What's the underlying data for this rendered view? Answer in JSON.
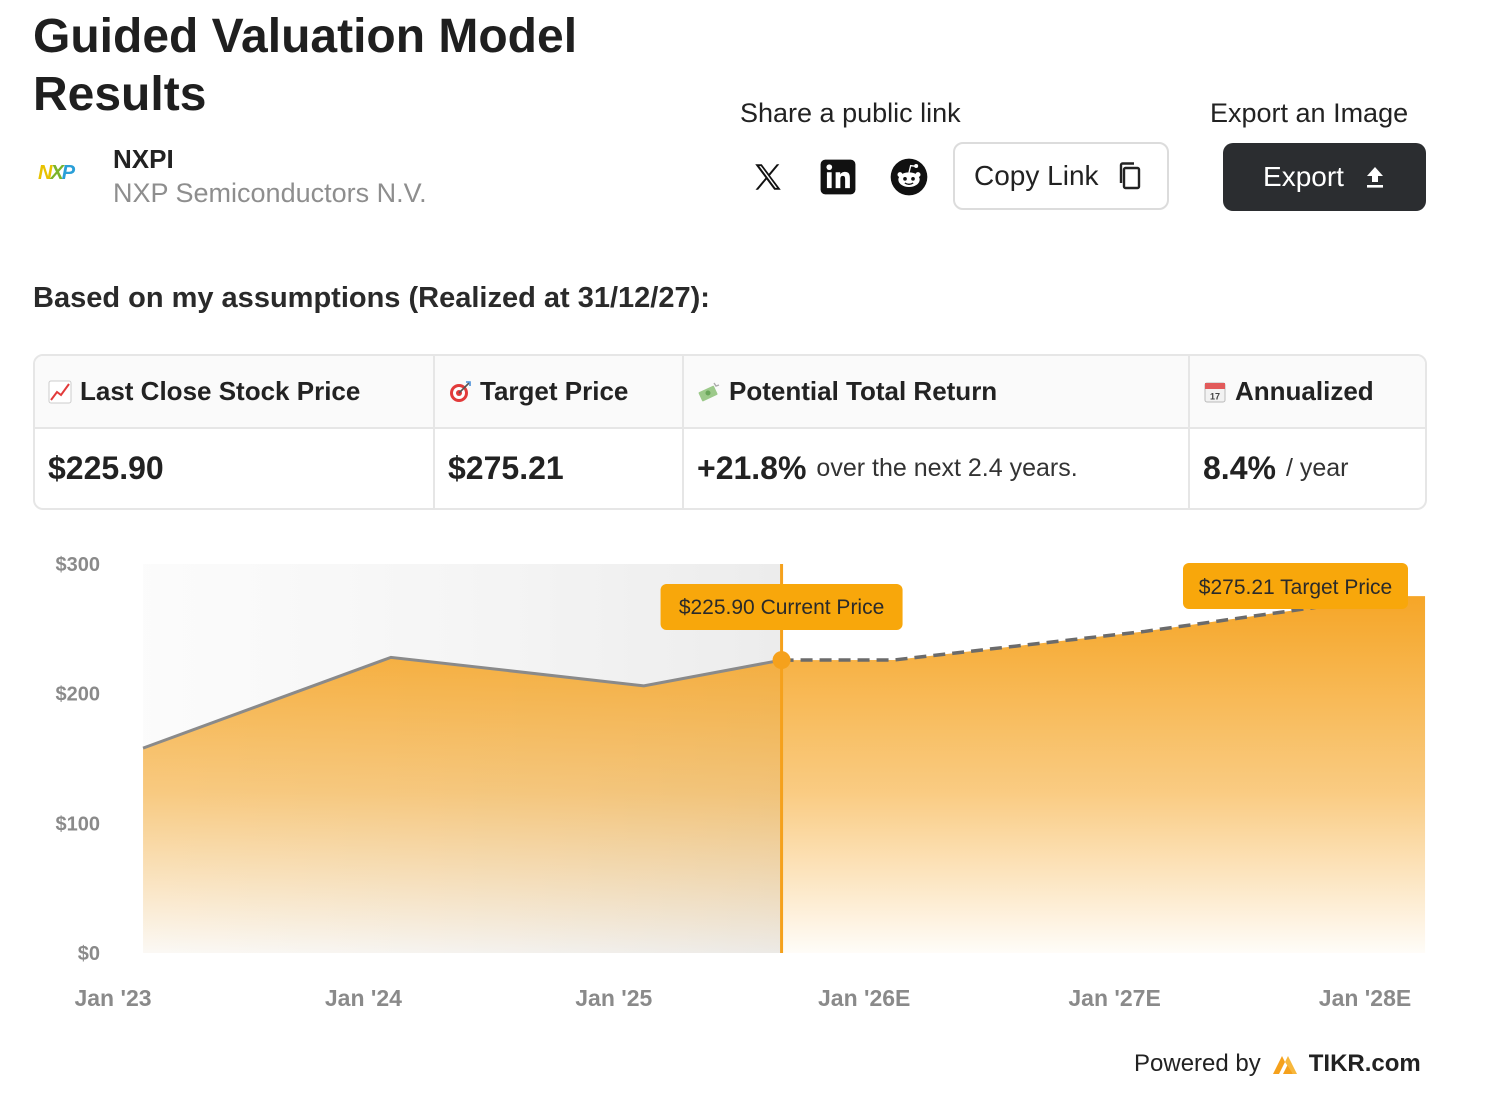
{
  "header": {
    "title": "Guided Valuation Model Results",
    "ticker": "NXPI",
    "company": "NXP Semiconductors N.V.",
    "logo_text": "NXP"
  },
  "share": {
    "label": "Share a public link",
    "copy_label": "Copy Link",
    "icons": [
      "x-icon",
      "linkedin-icon",
      "reddit-icon",
      "copy-icon"
    ]
  },
  "export": {
    "label": "Export an Image",
    "button_label": "Export",
    "icon": "upload-icon"
  },
  "assumptions_text": "Based on my assumptions (Realized at 31/12/27):",
  "metrics": {
    "headers": [
      {
        "icon": "chart-up-icon",
        "label": "Last Close Stock Price"
      },
      {
        "icon": "target-icon",
        "label": "Target Price"
      },
      {
        "icon": "money-icon",
        "label": "Potential Total Return"
      },
      {
        "icon": "calendar-icon",
        "label": "Annualized"
      }
    ],
    "last_close": "$225.90",
    "target": "$275.21",
    "return_value": "+21.8%",
    "return_text": "over the next 2.4 years.",
    "annualized_value": "8.4%",
    "annualized_text": "/ year"
  },
  "chart_data": {
    "type": "area",
    "x_ticks": [
      "Jan '23",
      "Jan '24",
      "Jan '25",
      "Jan '26E",
      "Jan '27E",
      "Jan '28E"
    ],
    "y_ticks": [
      "$0",
      "$100",
      "$200",
      "$300"
    ],
    "ylim": [
      0,
      300
    ],
    "historical": {
      "x": [
        0.12,
        1.11,
        2.12,
        2.67
      ],
      "y": [
        158,
        228,
        206,
        225.9
      ]
    },
    "projected": {
      "x": [
        2.67,
        3.12,
        4.12,
        5.12
      ],
      "y": [
        225.9,
        226,
        248,
        275.21
      ]
    },
    "current_price_label": "$225.90 Current Price",
    "target_price_label": "$275.21 Target Price",
    "colors": {
      "accent": "#f5a11c",
      "line": "#8a8a8a",
      "label_bg": "#f8a70b"
    }
  },
  "footer": {
    "powered_by": "Powered by",
    "brand": "TIKR.com"
  }
}
